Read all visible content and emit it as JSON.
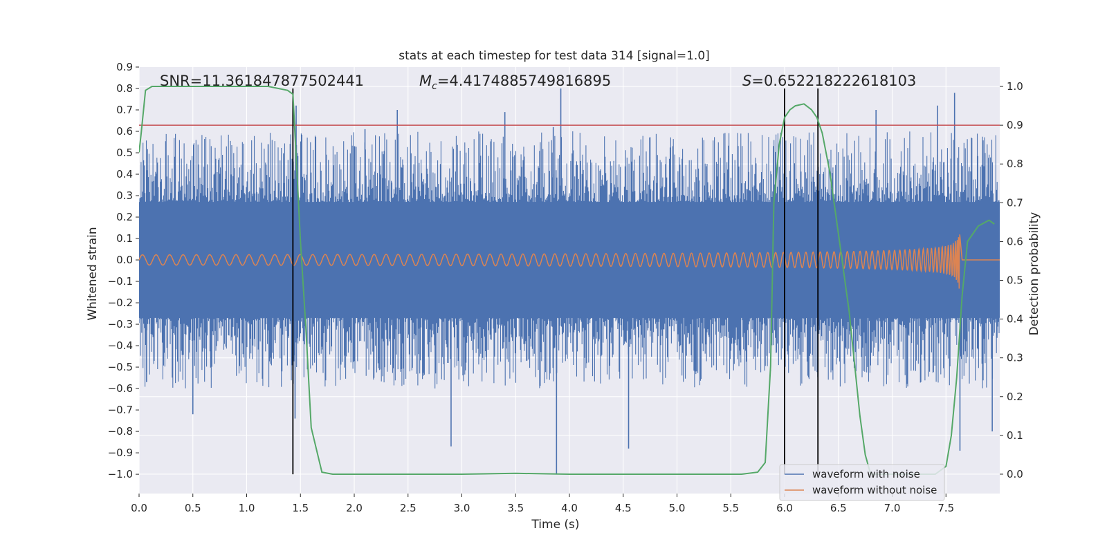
{
  "chart_data": {
    "type": "line",
    "title": "stats at each timestep for test data 314 [signal=1.0]",
    "xlabel": "Time (s)",
    "ylabel": "Whitened strain",
    "y2label": "Detection probability",
    "xlim": [
      0.0,
      8.0
    ],
    "ylim": [
      -1.09,
      0.9
    ],
    "y2lim": [
      -0.05,
      1.05
    ],
    "x_ticks": [
      0.0,
      0.5,
      1.0,
      1.5,
      2.0,
      2.5,
      3.0,
      3.5,
      4.0,
      4.5,
      5.0,
      5.5,
      6.0,
      6.5,
      7.0,
      7.5
    ],
    "x_tick_labels": [
      "0.0",
      "0.5",
      "1.0",
      "1.5",
      "2.0",
      "2.5",
      "3.0",
      "3.5",
      "4.0",
      "4.5",
      "5.0",
      "5.5",
      "6.0",
      "6.5",
      "7.0",
      "7.5"
    ],
    "y_ticks": [
      0.9,
      0.8,
      0.7,
      0.6,
      0.5,
      0.4,
      0.3,
      0.2,
      0.1,
      0.0,
      -0.1,
      -0.2,
      -0.3,
      -0.4,
      -0.5,
      -0.6,
      -0.7,
      -0.8,
      -0.9,
      -1.0
    ],
    "y_tick_labels": [
      "0.9",
      "0.8",
      "0.7",
      "0.6",
      "0.5",
      "0.4",
      "0.3",
      "0.2",
      "0.1",
      "0.0",
      "−0.1",
      "−0.2",
      "−0.3",
      "−0.4",
      "−0.5",
      "−0.6",
      "−0.7",
      "−0.8",
      "−0.9",
      "−1.0"
    ],
    "y2_ticks": [
      1.0,
      0.9,
      0.8,
      0.7,
      0.6,
      0.5,
      0.4,
      0.3,
      0.2,
      0.1,
      0.0
    ],
    "y2_tick_labels": [
      "1.0",
      "0.9",
      "0.8",
      "0.7",
      "0.6",
      "0.5",
      "0.4",
      "0.3",
      "0.2",
      "0.1",
      "0.0"
    ],
    "grid": true,
    "annotations": {
      "snr": "SNR=11.361847877502441",
      "mc_symbol": "M",
      "mc_sub": "c",
      "mc_value": "=4.4174885749816895",
      "s_symbol": "S",
      "s_value": "=0.652218222618103"
    },
    "threshold": {
      "value": 0.9,
      "axis": "y2",
      "color": "#c44e52"
    },
    "vertical_lines": [
      1.43,
      6.0,
      6.31
    ],
    "vertical_line_color": "#000000",
    "series": [
      {
        "name": "waveform with noise",
        "color": "#4c72b0",
        "kind": "noise",
        "core_amplitude": 0.27,
        "peaks": [
          {
            "x": 0.07,
            "y": -0.57
          },
          {
            "x": 0.5,
            "y": -0.72
          },
          {
            "x": 1.2,
            "y": 0.54
          },
          {
            "x": 1.45,
            "y": -0.74
          },
          {
            "x": 1.46,
            "y": 0.72
          },
          {
            "x": 2.1,
            "y": 0.61
          },
          {
            "x": 2.4,
            "y": 0.7
          },
          {
            "x": 2.9,
            "y": -0.87
          },
          {
            "x": 3.4,
            "y": 0.69
          },
          {
            "x": 3.85,
            "y": 0.62
          },
          {
            "x": 3.92,
            "y": 0.8
          },
          {
            "x": 3.88,
            "y": -1.0
          },
          {
            "x": 4.55,
            "y": -0.88
          },
          {
            "x": 6.85,
            "y": 0.7
          },
          {
            "x": 7.42,
            "y": 0.72
          },
          {
            "x": 7.58,
            "y": 0.78
          },
          {
            "x": 7.63,
            "y": -0.89
          },
          {
            "x": 7.93,
            "y": -0.8
          }
        ]
      },
      {
        "name": "waveform without noise",
        "color": "#dd8452",
        "kind": "chirp",
        "amplitude_start": 0.02,
        "amplitude_end": 0.22,
        "merger_time": 7.63
      },
      {
        "name": "detection probability",
        "color": "#55a868",
        "axis": "y2",
        "x": [
          0.0,
          0.02,
          0.06,
          0.12,
          0.2,
          0.4,
          0.8,
          1.2,
          1.38,
          1.43,
          1.46,
          1.5,
          1.55,
          1.6,
          1.7,
          1.8,
          2.0,
          3.0,
          3.5,
          4.0,
          5.0,
          5.6,
          5.75,
          5.82,
          5.87,
          5.9,
          5.95,
          6.0,
          6.05,
          6.1,
          6.18,
          6.25,
          6.3,
          6.35,
          6.42,
          6.5,
          6.6,
          6.7,
          6.75,
          6.8,
          7.0,
          7.2,
          7.4,
          7.5,
          7.55,
          7.6,
          7.65,
          7.7,
          7.8,
          7.9,
          7.95
        ],
        "y": [
          0.83,
          0.88,
          0.99,
          1.0,
          1.0,
          1.0,
          1.0,
          1.0,
          0.99,
          0.98,
          0.82,
          0.6,
          0.38,
          0.12,
          0.005,
          0.0,
          0.0,
          0.0,
          0.002,
          0.0,
          0.0,
          0.0,
          0.005,
          0.03,
          0.28,
          0.7,
          0.85,
          0.92,
          0.94,
          0.95,
          0.955,
          0.94,
          0.92,
          0.88,
          0.78,
          0.62,
          0.42,
          0.15,
          0.05,
          0.0,
          0.0,
          0.0,
          0.0,
          0.02,
          0.1,
          0.25,
          0.46,
          0.6,
          0.64,
          0.655,
          0.645
        ]
      }
    ],
    "legend": [
      "waveform with noise",
      "waveform without noise"
    ],
    "legend_position": "lower-right"
  }
}
